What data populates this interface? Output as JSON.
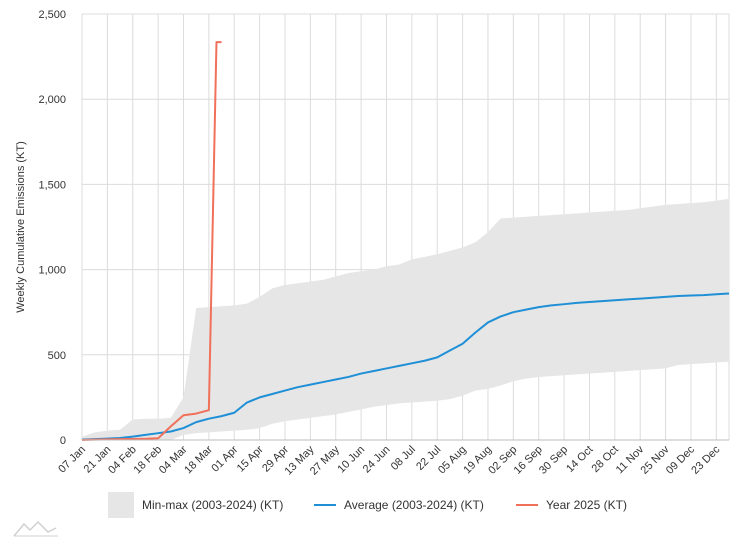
{
  "chart_data": {
    "type": "line",
    "ylabel": "Weekly Cumulative Emissions (KT)",
    "xlabel": "",
    "ylim": [
      0,
      2500
    ],
    "y_ticks": [
      "0",
      "500",
      "1,000",
      "1,500",
      "2,000",
      "2,500"
    ],
    "y_tick_values": [
      0,
      500,
      1000,
      1500,
      2000,
      2500
    ],
    "x_tick_labels": [
      "07 Jan",
      "21 Jan",
      "04 Feb",
      "18 Feb",
      "04 Mar",
      "18 Mar",
      "01 Apr",
      "15 Apr",
      "29 Apr",
      "13 May",
      "27 May",
      "10 Jun",
      "24 Jun",
      "08 Jul",
      "22 Jul",
      "05 Aug",
      "19 Aug",
      "02 Sep",
      "16 Sep",
      "30 Sep",
      "14 Oct",
      "28 Oct",
      "11 Nov",
      "25 Nov",
      "09 Dec",
      "23 Dec"
    ],
    "grid": true,
    "legend_position": "bottom",
    "colors": {
      "band": "#e6e6e6",
      "average": "#1f8fd6",
      "year": "#f0705a",
      "grid": "#dcdcdc"
    },
    "band": {
      "name": "Min-max (2003-2024) (KT)",
      "weeks": [
        1,
        2,
        3,
        4,
        5,
        6,
        7,
        8,
        9,
        10,
        11,
        12,
        13,
        14,
        15,
        16,
        17,
        18,
        19,
        20,
        21,
        22,
        23,
        24,
        25,
        26,
        27,
        28,
        29,
        30,
        31,
        32,
        33,
        34,
        35,
        36,
        37,
        38,
        39,
        40,
        41,
        42,
        43,
        44,
        45,
        46,
        47,
        48,
        49,
        50,
        51,
        52
      ],
      "max": [
        20,
        45,
        55,
        60,
        120,
        125,
        125,
        130,
        250,
        775,
        780,
        785,
        790,
        800,
        840,
        890,
        910,
        920,
        930,
        940,
        960,
        980,
        990,
        1000,
        1020,
        1030,
        1060,
        1075,
        1090,
        1110,
        1130,
        1160,
        1220,
        1300,
        1305,
        1310,
        1315,
        1320,
        1325,
        1330,
        1335,
        1340,
        1345,
        1350,
        1360,
        1370,
        1380,
        1385,
        1390,
        1395,
        1405,
        1415
      ],
      "min": [
        0,
        0,
        0,
        0,
        0,
        0,
        0,
        0,
        30,
        40,
        45,
        50,
        55,
        60,
        70,
        95,
        110,
        120,
        130,
        140,
        150,
        165,
        180,
        195,
        205,
        215,
        220,
        225,
        230,
        240,
        260,
        290,
        300,
        320,
        345,
        360,
        370,
        375,
        380,
        385,
        390,
        395,
        400,
        405,
        410,
        415,
        420,
        440,
        445,
        450,
        455,
        460
      ]
    },
    "series": [
      {
        "name": "Average (2003-2024) (KT)",
        "x": [
          1,
          2,
          3,
          4,
          5,
          6,
          7,
          8,
          9,
          10,
          11,
          12,
          13,
          14,
          15,
          16,
          17,
          18,
          19,
          20,
          21,
          22,
          23,
          24,
          25,
          26,
          27,
          28,
          29,
          30,
          31,
          32,
          33,
          34,
          35,
          36,
          37,
          38,
          39,
          40,
          41,
          42,
          43,
          44,
          45,
          46,
          47,
          48,
          49,
          50,
          51,
          52
        ],
        "values": [
          2,
          5,
          8,
          12,
          20,
          30,
          40,
          50,
          70,
          105,
          125,
          140,
          160,
          220,
          250,
          270,
          290,
          310,
          325,
          340,
          355,
          370,
          390,
          405,
          420,
          435,
          450,
          465,
          485,
          525,
          565,
          630,
          690,
          725,
          750,
          765,
          780,
          790,
          797,
          805,
          810,
          815,
          820,
          825,
          830,
          835,
          840,
          845,
          848,
          850,
          855,
          860
        ]
      },
      {
        "name": "Year 2025 (KT)",
        "x": [
          1,
          2,
          3,
          4,
          5,
          6,
          7,
          8,
          9,
          10,
          11,
          11.6,
          12
        ],
        "values": [
          0,
          2,
          4,
          5,
          6,
          7,
          10,
          80,
          145,
          155,
          175,
          2335,
          2335
        ]
      }
    ]
  },
  "legend": {
    "band_label": "Min-max (2003-2024) (KT)",
    "average_label": "Average (2003-2024) (KT)",
    "year_label": "Year 2025 (KT)"
  },
  "logo_icon": "mountain-logo-icon"
}
